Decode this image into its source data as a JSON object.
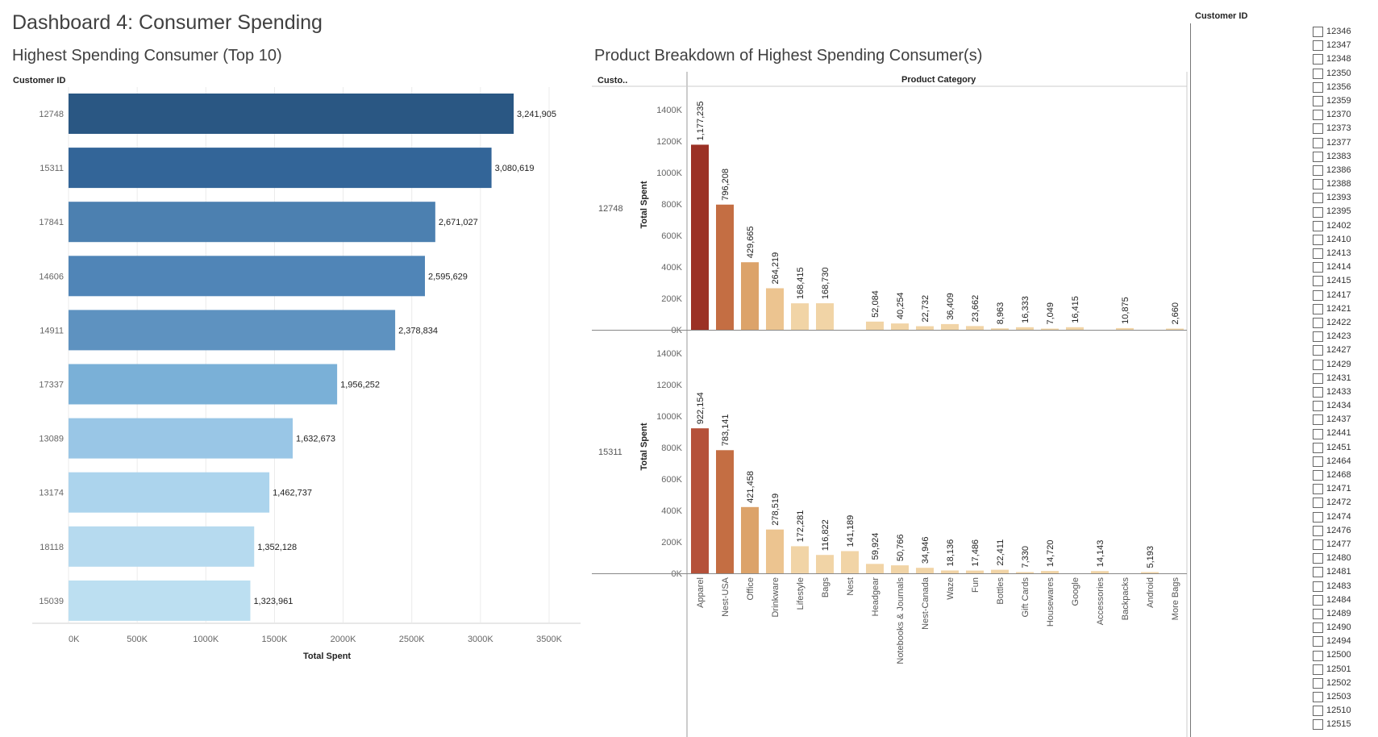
{
  "dashboard": {
    "title": "Dashboard 4: Consumer Spending"
  },
  "left_sheet": {
    "title": "Highest Spending Consumer (Top 10)",
    "y_header": "Customer ID",
    "x_axis_title": "Total Spent"
  },
  "right_sheet": {
    "title": "Product Breakdown of Highest Spending Consumer(s)",
    "row_header": "Custo..",
    "column_header": "Product Category",
    "y_axis_title": "Total Spent"
  },
  "filter": {
    "title": "Customer ID",
    "items": [
      "12346",
      "12347",
      "12348",
      "12350",
      "12356",
      "12359",
      "12370",
      "12373",
      "12377",
      "12383",
      "12386",
      "12388",
      "12393",
      "12395",
      "12402",
      "12410",
      "12413",
      "12414",
      "12415",
      "12417",
      "12421",
      "12422",
      "12423",
      "12427",
      "12429",
      "12431",
      "12433",
      "12434",
      "12437",
      "12441",
      "12451",
      "12464",
      "12468",
      "12471",
      "12472",
      "12474",
      "12476",
      "12477",
      "12480",
      "12481",
      "12483",
      "12484",
      "12489",
      "12490",
      "12494",
      "12500",
      "12501",
      "12502",
      "12503",
      "12510",
      "12515"
    ]
  },
  "colors": {
    "blue_scale": [
      "#2a5783",
      "#336598",
      "#4c80b0",
      "#5085b7",
      "#5e92c0",
      "#7ab0d7",
      "#99c6e6",
      "#acd4ed",
      "#b6daef",
      "#bcdff1"
    ],
    "orange_scale": [
      "#9b3125",
      "#b5513a",
      "#c46e43",
      "#dca36a",
      "#ecc490",
      "#f1d4a6"
    ],
    "grid": "#ebebeb"
  },
  "chart_data": [
    {
      "type": "bar",
      "orientation": "horizontal",
      "title": "Highest Spending Consumer (Top 10)",
      "xlabel": "Total Spent",
      "ylabel": "Customer ID",
      "categories": [
        "12748",
        "15311",
        "17841",
        "14606",
        "14911",
        "17337",
        "13089",
        "13174",
        "18118",
        "15039"
      ],
      "values": [
        3241905,
        3080619,
        2671027,
        2595629,
        2378834,
        1956252,
        1632673,
        1462737,
        1352128,
        1323961
      ],
      "value_labels": [
        "3,241,905",
        "3,080,619",
        "2,671,027",
        "2,595,629",
        "2,378,834",
        "1,956,252",
        "1,632,673",
        "1,462,737",
        "1,352,128",
        "1,323,961"
      ],
      "xlim": [
        0,
        3500000
      ],
      "x_ticks": [
        "0K",
        "500K",
        "1000K",
        "1500K",
        "2000K",
        "2500K",
        "3000K",
        "3500K"
      ],
      "grid": true
    },
    {
      "type": "bar",
      "title": "Product Breakdown of Highest Spending Consumer(s)",
      "xlabel": "Product Category",
      "ylabel": "Total Spent",
      "categories": [
        "Apparel",
        "Nest-USA",
        "Office",
        "Drinkware",
        "Lifestyle",
        "Bags",
        "Nest",
        "Headgear",
        "Notebooks & Journals",
        "Nest-Canada",
        "Waze",
        "Fun",
        "Bottles",
        "Gift Cards",
        "Housewares",
        "Google",
        "Accessories",
        "Backpacks",
        "Android",
        "More Bags"
      ],
      "ylim": [
        0,
        1400000
      ],
      "y_ticks": [
        "0K",
        "200K",
        "400K",
        "600K",
        "800K",
        "1000K",
        "1200K",
        "1400K"
      ],
      "panels": [
        {
          "customer": "12748",
          "values": [
            1177235,
            796208,
            429665,
            264219,
            168415,
            168730,
            null,
            52084,
            40254,
            22732,
            36409,
            23662,
            8963,
            16333,
            7049,
            16415,
            null,
            10875,
            null,
            2660
          ],
          "value_labels": [
            "1,177,235",
            "796,208",
            "429,665",
            "264,219",
            "168,415",
            "168,730",
            "",
            "52,084",
            "40,254",
            "22,732",
            "36,409",
            "23,662",
            "8,963",
            "16,333",
            "7,049",
            "16,415",
            "",
            "10,875",
            "",
            "2,660"
          ]
        },
        {
          "customer": "15311",
          "values": [
            922154,
            783141,
            421458,
            278519,
            172281,
            116822,
            141189,
            59924,
            50766,
            34946,
            18136,
            17486,
            22411,
            7330,
            14720,
            null,
            14143,
            null,
            5193,
            null
          ],
          "value_labels": [
            "922,154",
            "783,141",
            "421,458",
            "278,519",
            "172,281",
            "116,822",
            "141,189",
            "59,924",
            "50,766",
            "34,946",
            "18,136",
            "17,486",
            "22,411",
            "7,330",
            "14,720",
            "",
            "14,143",
            "",
            "5,193",
            ""
          ]
        }
      ]
    }
  ]
}
